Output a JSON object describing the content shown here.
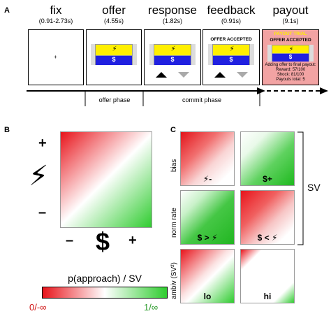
{
  "panel_a": {
    "letter": "A",
    "stages": [
      {
        "title": "fix",
        "duration": "(0.91-2.73s)"
      },
      {
        "title": "offer",
        "duration": "(4.55s)"
      },
      {
        "title": "response",
        "duration": "(1.82s)"
      },
      {
        "title": "feedback",
        "duration": "(0.91s)"
      },
      {
        "title": "payout",
        "duration": "(9.1s)"
      }
    ],
    "offer_symbol_top": "⚡",
    "offer_symbol_bottom": "$",
    "feedback_text": "OFFER ACCEPTED",
    "payout_trial_text": "PAYOUT TRIAL",
    "payout_accepted_text": "OFFER ACCEPTED",
    "payout_lines": [
      "Adding offer to final payout:",
      "Reward: 57/100",
      "Shock: 81/100",
      "Payouts total: 5"
    ],
    "phases": [
      "offer phase",
      "commit phase"
    ],
    "colors": {
      "offer_top": "#ffef00",
      "offer_bottom": "#2020e0",
      "payout_bg": "#f2a3a3",
      "payout_trial": "#ffef00"
    }
  },
  "panel_b": {
    "letter": "B",
    "plus": "+",
    "minus": "–",
    "bolt": "⚡",
    "dollar": "$",
    "colorbar_label": "p(approach) / SV",
    "colorbar_low": "0/-∞",
    "colorbar_high": "1/∞",
    "colors": {
      "low": "#e8141b",
      "mid": "#ffffff",
      "high": "#2fcc2f"
    }
  },
  "panel_c": {
    "letter": "C",
    "row_labels": [
      "bias",
      "norm rate",
      "ambiv (SV²)"
    ],
    "cells": [
      "⚡-",
      "$+",
      "$ > ⚡",
      "$ < ⚡",
      "lo",
      "hi"
    ],
    "bracket_label": "SV"
  }
}
